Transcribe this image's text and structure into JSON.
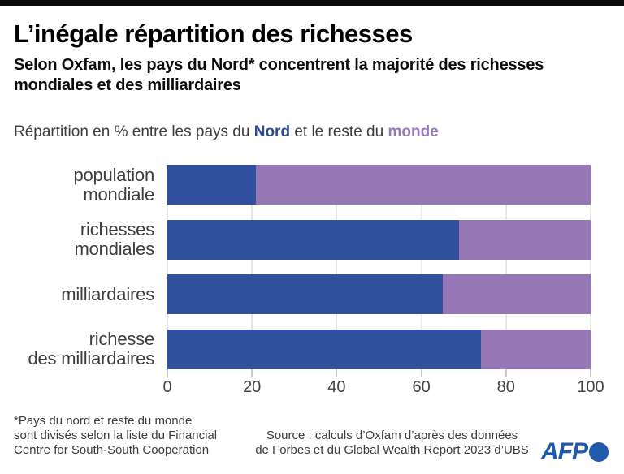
{
  "colors": {
    "north_bar": "#31519e",
    "world_bar": "#9677b5",
    "north_text": "#2b4b94",
    "world_text": "#9678bb",
    "afp_blue": "#1f5aab",
    "topbar": "#0b0b0b",
    "gridline": "#cfcfcf"
  },
  "header": {
    "title": "L’inégale répartition des richesses",
    "subtitle": "Selon Oxfam, les pays du Nord* concentrent la majorité des richesses mondiales et des milliardaires"
  },
  "legend": {
    "prefix": "Répartition en % entre les pays du ",
    "north_word": "Nord",
    "middle": " et le reste du ",
    "world_word": "monde"
  },
  "chart_data": {
    "type": "bar",
    "orientation": "horizontal",
    "stacked": true,
    "unit": "%",
    "categories": [
      "population\nmondiale",
      "richesses\nmondiales",
      "milliardaires",
      "richesse\ndes milliardaires"
    ],
    "series": [
      {
        "name": "pays du Nord",
        "color": "#31519e",
        "values": [
          21,
          69,
          65,
          74
        ]
      },
      {
        "name": "reste du monde",
        "color": "#9677b5",
        "values": [
          79,
          31,
          35,
          26
        ]
      }
    ],
    "xlim": [
      0,
      100
    ],
    "x_ticks": [
      0,
      20,
      40,
      60,
      80,
      100
    ],
    "grid": true,
    "legend_position": "above-chart-inline"
  },
  "footer": {
    "footnote": "*Pays du nord et reste du monde\nsont divisés selon la liste du Financial\nCentre for South-South Cooperation",
    "source": "Source : calculs d’Oxfam d’après des données\nde Forbes et du Global Wealth Report 2023 d’UBS",
    "logo_text": "AFP"
  }
}
